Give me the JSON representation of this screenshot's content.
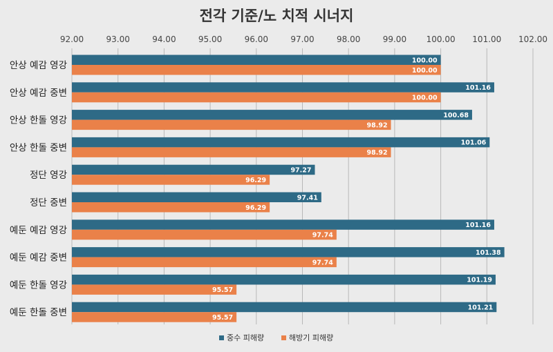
{
  "chart_data": {
    "type": "bar",
    "orientation": "horizontal",
    "title": "전각 기준/노 치적 시너지",
    "categories": [
      "안상 예감 영강",
      "안상 예감 중변",
      "안상 한돌 영강",
      "안상 한돌 중변",
      "정단 영강",
      "정단 중변",
      "예둔 예감 영강",
      "예둔 예감 중변",
      "예둔 한돌 영강",
      "예둔 한돌 중변"
    ],
    "series": [
      {
        "name": "중수 피해량",
        "color": "#2e6a86",
        "values": [
          100.0,
          101.16,
          100.68,
          101.06,
          97.27,
          97.41,
          101.16,
          101.38,
          101.19,
          101.21
        ]
      },
      {
        "name": "해방기 피해량",
        "color": "#ea8149",
        "values": [
          100.0,
          100.0,
          98.92,
          98.92,
          96.29,
          96.29,
          97.74,
          97.74,
          95.57,
          95.57
        ]
      }
    ],
    "xlim": [
      92,
      102
    ],
    "xticks": [
      "92.00",
      "93.00",
      "94.00",
      "95.00",
      "96.00",
      "97.00",
      "98.00",
      "99.00",
      "100.00",
      "101.00",
      "102.00"
    ],
    "xaxis_position": "top",
    "grid": true,
    "legend": "bottom",
    "data_labels": true
  }
}
